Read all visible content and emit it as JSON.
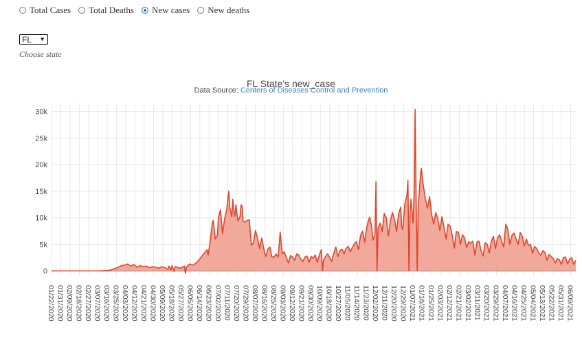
{
  "controls": {
    "radio_options": [
      {
        "label": "Total Cases",
        "checked": false
      },
      {
        "label": "Total Deaths",
        "checked": false
      },
      {
        "label": "New cases",
        "checked": true
      },
      {
        "label": "New deaths",
        "checked": false
      }
    ],
    "state_select_value": "FL",
    "choose_state_label": "Choose state"
  },
  "colors": {
    "line": "#e0452b",
    "fill": "#efa090",
    "grid": "#e8e8e8",
    "accent": "#1a73e8",
    "link": "#3c7fc0"
  },
  "chart_data": {
    "type": "area",
    "title": "FL State's new_case",
    "subtitle_prefix": "Data Source: ",
    "subtitle_link": "Centers of Diseases Control and Prevention",
    "xlabel": "",
    "ylabel": "",
    "ylim": [
      -1000,
      31500
    ],
    "yticks": [
      0,
      5000,
      10000,
      15000,
      20000,
      25000,
      30000
    ],
    "ytick_labels": [
      "0",
      "5k",
      "10k",
      "15k",
      "20k",
      "25k",
      "30k"
    ],
    "grid": true,
    "x_range": [
      "2020-01-22",
      "2021-06-14"
    ],
    "xtick_labels": [
      "01/22/2020",
      "01/31/2020",
      "02/09/2020",
      "02/18/2020",
      "02/27/2020",
      "03/07/2020",
      "03/16/2020",
      "03/25/2020",
      "04/03/2020",
      "04/12/2020",
      "04/21/2020",
      "04/30/2020",
      "05/09/2020",
      "05/18/2020",
      "05/27/2020",
      "06/05/2020",
      "06/14/2020",
      "06/23/2020",
      "07/02/2020",
      "07/11/2020",
      "07/20/2020",
      "07/29/2020",
      "08/07/2020",
      "08/16/2020",
      "08/25/2020",
      "09/03/2020",
      "09/12/2020",
      "09/21/2020",
      "09/30/2020",
      "10/09/2020",
      "10/18/2020",
      "10/27/2020",
      "11/05/2020",
      "11/14/2020",
      "11/23/2020",
      "12/02/2020",
      "12/11/2020",
      "12/20/2020",
      "12/29/2020",
      "01/07/2021",
      "01/16/2021",
      "01/25/2021",
      "02/03/2021",
      "02/12/2021",
      "02/21/2021",
      "03/02/2021",
      "03/11/2021",
      "03/20/2021",
      "03/29/2021",
      "04/07/2021",
      "04/16/2021",
      "04/25/2021",
      "05/04/2021",
      "05/13/2021",
      "05/22/2021",
      "05/31/2021",
      "06/09/2021"
    ],
    "series": [
      {
        "values": [
          [
            "2020-01-22",
            0
          ],
          [
            "2020-02-29",
            0
          ],
          [
            "2020-03-10",
            10
          ],
          [
            "2020-03-16",
            50
          ],
          [
            "2020-03-20",
            200
          ],
          [
            "2020-03-24",
            500
          ],
          [
            "2020-03-27",
            700
          ],
          [
            "2020-03-30",
            1000
          ],
          [
            "2020-04-02",
            1100
          ],
          [
            "2020-04-05",
            1300
          ],
          [
            "2020-04-08",
            900
          ],
          [
            "2020-04-11",
            1200
          ],
          [
            "2020-04-14",
            700
          ],
          [
            "2020-04-17",
            1000
          ],
          [
            "2020-04-20",
            800
          ],
          [
            "2020-04-23",
            900
          ],
          [
            "2020-04-26",
            600
          ],
          [
            "2020-04-29",
            800
          ],
          [
            "2020-05-02",
            700
          ],
          [
            "2020-05-05",
            500
          ],
          [
            "2020-05-08",
            800
          ],
          [
            "2020-05-11",
            600
          ],
          [
            "2020-05-14",
            300
          ],
          [
            "2020-05-15",
            900
          ],
          [
            "2020-05-17",
            200
          ],
          [
            "2020-05-18",
            1000
          ],
          [
            "2020-05-20",
            -100
          ],
          [
            "2020-05-21",
            800
          ],
          [
            "2020-05-23",
            700
          ],
          [
            "2020-05-26",
            500
          ],
          [
            "2020-05-30",
            900
          ],
          [
            "2020-05-31",
            -500
          ],
          [
            "2020-06-01",
            700
          ],
          [
            "2020-06-04",
            1300
          ],
          [
            "2020-06-07",
            1100
          ],
          [
            "2020-06-10",
            1400
          ],
          [
            "2020-06-13",
            2000
          ],
          [
            "2020-06-16",
            2800
          ],
          [
            "2020-06-19",
            3500
          ],
          [
            "2020-06-21",
            4000
          ],
          [
            "2020-06-22",
            3000
          ],
          [
            "2020-06-24",
            5500
          ],
          [
            "2020-06-26",
            9000
          ],
          [
            "2020-06-27",
            9500
          ],
          [
            "2020-06-29",
            6000
          ],
          [
            "2020-07-01",
            6600
          ],
          [
            "2020-07-02",
            10000
          ],
          [
            "2020-07-04",
            11500
          ],
          [
            "2020-07-06",
            7000
          ],
          [
            "2020-07-08",
            9800
          ],
          [
            "2020-07-10",
            11400
          ],
          [
            "2020-07-12",
            15000
          ],
          [
            "2020-07-13",
            12000
          ],
          [
            "2020-07-15",
            10200
          ],
          [
            "2020-07-16",
            13500
          ],
          [
            "2020-07-17",
            11300
          ],
          [
            "2020-07-18",
            10300
          ],
          [
            "2020-07-19",
            12400
          ],
          [
            "2020-07-21",
            9400
          ],
          [
            "2020-07-23",
            10200
          ],
          [
            "2020-07-24",
            12400
          ],
          [
            "2020-07-25",
            12200
          ],
          [
            "2020-07-26",
            9300
          ],
          [
            "2020-07-28",
            9200
          ],
          [
            "2020-07-30",
            9500
          ],
          [
            "2020-08-01",
            9600
          ],
          [
            "2020-08-03",
            4800
          ],
          [
            "2020-08-05",
            5300
          ],
          [
            "2020-08-07",
            7600
          ],
          [
            "2020-08-09",
            6200
          ],
          [
            "2020-08-11",
            4200
          ],
          [
            "2020-08-13",
            6200
          ],
          [
            "2020-08-15",
            4200
          ],
          [
            "2020-08-17",
            2700
          ],
          [
            "2020-08-19",
            4100
          ],
          [
            "2020-08-21",
            4500
          ],
          [
            "2020-08-23",
            2600
          ],
          [
            "2020-08-25",
            2600
          ],
          [
            "2020-08-27",
            3200
          ],
          [
            "2020-08-29",
            2600
          ],
          [
            "2020-08-31",
            7300
          ],
          [
            "2020-09-02",
            3200
          ],
          [
            "2020-09-04",
            3600
          ],
          [
            "2020-09-06",
            2500
          ],
          [
            "2020-09-08",
            1500
          ],
          [
            "2020-09-10",
            2900
          ],
          [
            "2020-09-12",
            2600
          ],
          [
            "2020-09-14",
            2000
          ],
          [
            "2020-09-16",
            3200
          ],
          [
            "2020-09-18",
            3000
          ],
          [
            "2020-09-20",
            2200
          ],
          [
            "2020-09-22",
            1800
          ],
          [
            "2020-09-24",
            2600
          ],
          [
            "2020-09-26",
            2800
          ],
          [
            "2020-09-28",
            1600
          ],
          [
            "2020-09-30",
            2700
          ],
          [
            "2020-10-02",
            2400
          ],
          [
            "2020-10-04",
            3000
          ],
          [
            "2020-10-06",
            1600
          ],
          [
            "2020-10-08",
            3000
          ],
          [
            "2020-10-10",
            4000
          ],
          [
            "2020-10-11",
            0
          ],
          [
            "2020-10-12",
            2000
          ],
          [
            "2020-10-14",
            2700
          ],
          [
            "2020-10-16",
            3200
          ],
          [
            "2020-10-18",
            2500
          ],
          [
            "2020-10-20",
            1800
          ],
          [
            "2020-10-22",
            3300
          ],
          [
            "2020-10-24",
            4500
          ],
          [
            "2020-10-26",
            2700
          ],
          [
            "2020-10-28",
            3800
          ],
          [
            "2020-10-30",
            4100
          ],
          [
            "2020-11-01",
            3200
          ],
          [
            "2020-11-03",
            4300
          ],
          [
            "2020-11-05",
            4600
          ],
          [
            "2020-11-07",
            3600
          ],
          [
            "2020-11-09",
            4400
          ],
          [
            "2020-11-11",
            5100
          ],
          [
            "2020-11-13",
            5500
          ],
          [
            "2020-11-15",
            4000
          ],
          [
            "2020-11-17",
            6700
          ],
          [
            "2020-11-19",
            7500
          ],
          [
            "2020-11-21",
            5400
          ],
          [
            "2020-11-23",
            8200
          ],
          [
            "2020-11-25",
            9700
          ],
          [
            "2020-11-26",
            10100
          ],
          [
            "2020-11-28",
            8000
          ],
          [
            "2020-11-29",
            5800
          ],
          [
            "2020-12-01",
            6800
          ],
          [
            "2020-12-02",
            16800
          ],
          [
            "2020-12-03",
            0
          ],
          [
            "2020-12-04",
            8000
          ],
          [
            "2020-12-06",
            9000
          ],
          [
            "2020-12-08",
            7400
          ],
          [
            "2020-12-10",
            10800
          ],
          [
            "2020-12-12",
            10000
          ],
          [
            "2020-12-14",
            6600
          ],
          [
            "2020-12-16",
            9500
          ],
          [
            "2020-12-18",
            11000
          ],
          [
            "2020-12-20",
            9700
          ],
          [
            "2020-12-22",
            7400
          ],
          [
            "2020-12-24",
            10800
          ],
          [
            "2020-12-26",
            12000
          ],
          [
            "2020-12-27",
            8200
          ],
          [
            "2020-12-28",
            7800
          ],
          [
            "2020-12-30",
            12600
          ],
          [
            "2021-01-01",
            14200
          ],
          [
            "2021-01-02",
            17000
          ],
          [
            "2021-01-03",
            0
          ],
          [
            "2021-01-04",
            11000
          ],
          [
            "2021-01-05",
            13500
          ],
          [
            "2021-01-06",
            11200
          ],
          [
            "2021-01-07",
            9000
          ],
          [
            "2021-01-08",
            14000
          ],
          [
            "2021-01-09",
            30400
          ],
          [
            "2021-01-10",
            13000
          ],
          [
            "2021-01-11",
            0
          ],
          [
            "2021-01-12",
            12000
          ],
          [
            "2021-01-14",
            17500
          ],
          [
            "2021-01-15",
            19300
          ],
          [
            "2021-01-17",
            16000
          ],
          [
            "2021-01-19",
            13500
          ],
          [
            "2021-01-21",
            11800
          ],
          [
            "2021-01-23",
            14000
          ],
          [
            "2021-01-25",
            10600
          ],
          [
            "2021-01-27",
            8800
          ],
          [
            "2021-01-29",
            11000
          ],
          [
            "2021-01-31",
            9800
          ],
          [
            "2021-02-02",
            7600
          ],
          [
            "2021-02-04",
            10200
          ],
          [
            "2021-02-06",
            8300
          ],
          [
            "2021-02-08",
            6000
          ],
          [
            "2021-02-10",
            8800
          ],
          [
            "2021-02-12",
            8400
          ],
          [
            "2021-02-14",
            6700
          ],
          [
            "2021-02-16",
            4300
          ],
          [
            "2021-02-18",
            7400
          ],
          [
            "2021-02-20",
            7300
          ],
          [
            "2021-02-22",
            5000
          ],
          [
            "2021-02-24",
            6800
          ],
          [
            "2021-02-26",
            6200
          ],
          [
            "2021-02-28",
            4400
          ],
          [
            "2021-03-02",
            5500
          ],
          [
            "2021-03-04",
            5200
          ],
          [
            "2021-03-06",
            5600
          ],
          [
            "2021-03-08",
            3000
          ],
          [
            "2021-03-10",
            5400
          ],
          [
            "2021-03-12",
            5600
          ],
          [
            "2021-03-14",
            3800
          ],
          [
            "2021-03-16",
            2800
          ],
          [
            "2021-03-18",
            5300
          ],
          [
            "2021-03-20",
            5000
          ],
          [
            "2021-03-22",
            3400
          ],
          [
            "2021-03-24",
            5600
          ],
          [
            "2021-03-26",
            6500
          ],
          [
            "2021-03-28",
            4200
          ],
          [
            "2021-03-30",
            6200
          ],
          [
            "2021-04-01",
            6800
          ],
          [
            "2021-04-03",
            5600
          ],
          [
            "2021-04-05",
            4500
          ],
          [
            "2021-04-07",
            8800
          ],
          [
            "2021-04-09",
            7800
          ],
          [
            "2021-04-11",
            5000
          ],
          [
            "2021-04-13",
            6700
          ],
          [
            "2021-04-15",
            7100
          ],
          [
            "2021-04-17",
            6000
          ],
          [
            "2021-04-19",
            5000
          ],
          [
            "2021-04-21",
            7200
          ],
          [
            "2021-04-23",
            6500
          ],
          [
            "2021-04-25",
            4700
          ],
          [
            "2021-04-27",
            6000
          ],
          [
            "2021-04-29",
            4800
          ],
          [
            "2021-05-01",
            5000
          ],
          [
            "2021-05-03",
            3300
          ],
          [
            "2021-05-05",
            4600
          ],
          [
            "2021-05-07",
            4200
          ],
          [
            "2021-05-09",
            3400
          ],
          [
            "2021-05-11",
            3000
          ],
          [
            "2021-05-13",
            3800
          ],
          [
            "2021-05-15",
            3500
          ],
          [
            "2021-05-17",
            2000
          ],
          [
            "2021-05-19",
            3100
          ],
          [
            "2021-05-21",
            2700
          ],
          [
            "2021-05-23",
            2400
          ],
          [
            "2021-05-25",
            1500
          ],
          [
            "2021-05-27",
            2300
          ],
          [
            "2021-05-29",
            2100
          ],
          [
            "2021-05-31",
            1200
          ],
          [
            "2021-06-02",
            2500
          ],
          [
            "2021-06-04",
            2600
          ],
          [
            "2021-06-06",
            1300
          ],
          [
            "2021-06-08",
            2200
          ],
          [
            "2021-06-10",
            2500
          ],
          [
            "2021-06-12",
            1200
          ],
          [
            "2021-06-14",
            2000
          ]
        ]
      }
    ]
  }
}
